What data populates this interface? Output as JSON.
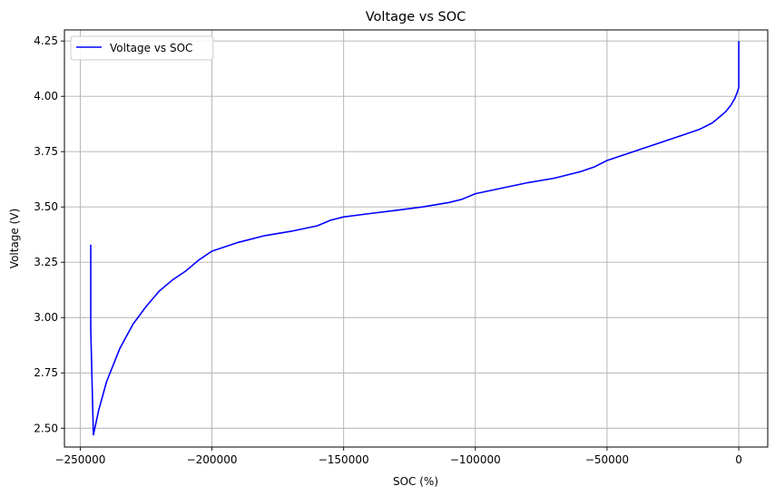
{
  "chart_data": {
    "type": "line",
    "title": "Voltage vs SOC",
    "xlabel": "SOC (%)",
    "ylabel": "Voltage (V)",
    "xlim": [
      -256000,
      11000
    ],
    "ylim": [
      2.415,
      4.3
    ],
    "grid": true,
    "legend_position": "top-left",
    "x_ticks": [
      -250000,
      -200000,
      -150000,
      -100000,
      -50000,
      0
    ],
    "x_tick_labels": [
      "−250000",
      "−200000",
      "−150000",
      "−100000",
      "−50000",
      "0"
    ],
    "y_ticks": [
      2.5,
      2.75,
      3.0,
      3.25,
      3.5,
      3.75,
      4.0,
      4.25
    ],
    "y_tick_labels": [
      "2.50",
      "2.75",
      "3.00",
      "3.25",
      "3.50",
      "3.75",
      "4.00",
      "4.25"
    ],
    "series": [
      {
        "name": "Voltage vs SOC",
        "color": "#0000ff",
        "x": [
          0,
          0,
          -500,
          -1500,
          -3000,
          -5000,
          -8000,
          -10000,
          -15000,
          -20000,
          -25000,
          -30000,
          -40000,
          -50000,
          -55000,
          -60000,
          -70000,
          -80000,
          -90000,
          -100000,
          -105000,
          -110000,
          -120000,
          -130000,
          -140000,
          -150000,
          -155000,
          -160000,
          -170000,
          -180000,
          -190000,
          -200000,
          -205000,
          -210000,
          -215000,
          -220000,
          -225000,
          -230000,
          -235000,
          -240000,
          -243000,
          -245000,
          -245500,
          -246000,
          -246000
        ],
        "y": [
          4.25,
          4.04,
          4.02,
          3.99,
          3.96,
          3.93,
          3.9,
          3.88,
          3.85,
          3.83,
          3.81,
          3.79,
          3.75,
          3.71,
          3.68,
          3.66,
          3.63,
          3.61,
          3.585,
          3.56,
          3.535,
          3.52,
          3.5,
          3.485,
          3.47,
          3.455,
          3.44,
          3.415,
          3.39,
          3.37,
          3.34,
          3.3,
          3.26,
          3.21,
          3.17,
          3.12,
          3.05,
          2.97,
          2.86,
          2.71,
          2.58,
          2.47,
          2.7,
          2.95,
          3.33
        ]
      }
    ]
  }
}
